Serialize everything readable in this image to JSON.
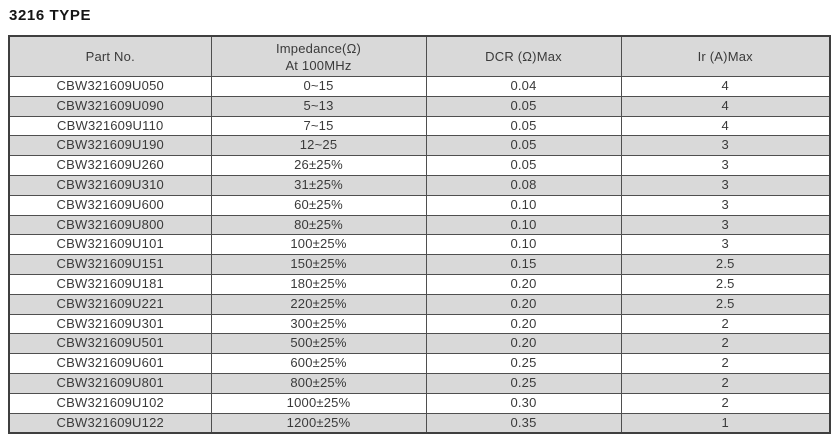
{
  "page_title": "3216 TYPE",
  "table": {
    "columns": [
      {
        "label": "Part No."
      },
      {
        "label_line1": "Impedance(Ω)",
        "label_line2": "At 100MHz"
      },
      {
        "label": "DCR (Ω)Max"
      },
      {
        "label": "Ir (A)Max"
      }
    ],
    "rows": [
      [
        "CBW321609U050",
        "0~15",
        "0.04",
        "4"
      ],
      [
        "CBW321609U090",
        "5~13",
        "0.05",
        "4"
      ],
      [
        "CBW321609U110",
        "7~15",
        "0.05",
        "4"
      ],
      [
        "CBW321609U190",
        "12~25",
        "0.05",
        "3"
      ],
      [
        "CBW321609U260",
        "26±25%",
        "0.05",
        "3"
      ],
      [
        "CBW321609U310",
        "31±25%",
        "0.08",
        "3"
      ],
      [
        "CBW321609U600",
        "60±25%",
        "0.10",
        "3"
      ],
      [
        "CBW321609U800",
        "80±25%",
        "0.10",
        "3"
      ],
      [
        "CBW321609U101",
        "100±25%",
        "0.10",
        "3"
      ],
      [
        "CBW321609U151",
        "150±25%",
        "0.15",
        "2.5"
      ],
      [
        "CBW321609U181",
        "180±25%",
        "0.20",
        "2.5"
      ],
      [
        "CBW321609U221",
        "220±25%",
        "0.20",
        "2.5"
      ],
      [
        "CBW321609U301",
        "300±25%",
        "0.20",
        "2"
      ],
      [
        "CBW321609U501",
        "500±25%",
        "0.20",
        "2"
      ],
      [
        "CBW321609U601",
        "600±25%",
        "0.25",
        "2"
      ],
      [
        "CBW321609U801",
        "800±25%",
        "0.25",
        "2"
      ],
      [
        "CBW321609U102",
        "1000±25%",
        "0.30",
        "2"
      ],
      [
        "CBW321609U122",
        "1200±25%",
        "0.35",
        "1"
      ]
    ]
  },
  "colors": {
    "row_stripe": "#d9d9d9",
    "header_bg": "#d9d9d9",
    "border": "#4f4f4f",
    "text": "#3a3a3a",
    "title_text": "#151515",
    "page_bg": "#ffffff"
  }
}
